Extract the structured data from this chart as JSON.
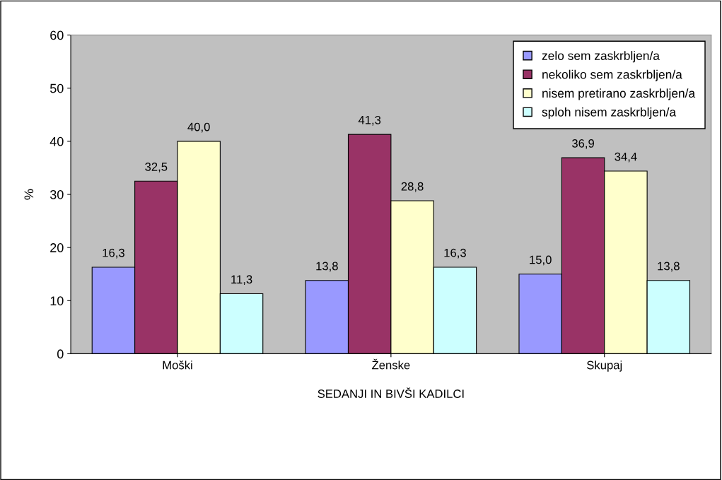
{
  "chart_data": {
    "type": "bar",
    "xlabel": "SEDANJI IN BIVŠI KADILCI",
    "ylabel": "%",
    "categories": [
      "Moški",
      "Ženske",
      "Skupaj"
    ],
    "series": [
      {
        "name": "zelo sem zaskrbljen/a",
        "color": "#9999ff",
        "values": [
          16.3,
          13.8,
          15.0
        ],
        "value_labels": [
          "16,3",
          "13,8",
          "15,0"
        ]
      },
      {
        "name": "nekoliko sem zaskrbljen/a",
        "color": "#993366",
        "values": [
          32.5,
          41.3,
          36.9
        ],
        "value_labels": [
          "32,5",
          "41,3",
          "36,9"
        ]
      },
      {
        "name": "nisem pretirano zaskrbljen/a",
        "color": "#ffffcc",
        "values": [
          40.0,
          28.8,
          34.4
        ],
        "value_labels": [
          "40,0",
          "28,8",
          "34,4"
        ]
      },
      {
        "name": "sploh nisem zaskrbljen/a",
        "color": "#ccffff",
        "values": [
          11.3,
          16.3,
          13.8
        ],
        "value_labels": [
          "11,3",
          "16,3",
          "13,8"
        ]
      }
    ],
    "ylim": [
      0,
      60
    ],
    "yticks": [
      0,
      10,
      20,
      30,
      40,
      50,
      60
    ],
    "grid": false,
    "legend": "top right"
  }
}
